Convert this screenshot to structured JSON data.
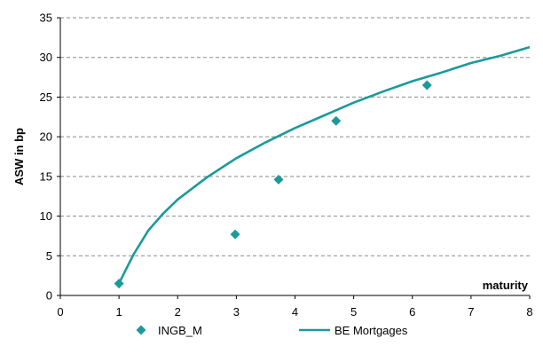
{
  "chart_data": {
    "type": "scatter",
    "title": "",
    "xlabel": "maturity",
    "ylabel": "ASW in bp",
    "xlim": [
      0,
      8
    ],
    "ylim": [
      0,
      35
    ],
    "x_ticks": [
      "0",
      "1",
      "2",
      "3",
      "4",
      "5",
      "6",
      "7",
      "8"
    ],
    "y_ticks": [
      "0",
      "5",
      "10",
      "15",
      "20",
      "25",
      "30",
      "35"
    ],
    "grid": "horizontal dashed",
    "legend_position": "bottom",
    "series": [
      {
        "name": "INGB_M",
        "kind": "scatter",
        "marker": "diamond",
        "color": "#1b9a9a",
        "x": [
          1.0,
          2.98,
          3.72,
          4.7,
          6.25
        ],
        "y": [
          1.5,
          7.7,
          14.6,
          22.0,
          26.5
        ]
      },
      {
        "name": "BE Mortgages",
        "kind": "line",
        "color": "#1b9a9a",
        "x": [
          1.0,
          1.1,
          1.25,
          1.5,
          1.75,
          2.0,
          2.5,
          3.0,
          3.5,
          4.0,
          4.5,
          5.0,
          5.5,
          6.0,
          6.5,
          7.0,
          7.5,
          8.0
        ],
        "y": [
          1.5,
          3.0,
          5.2,
          8.2,
          10.3,
          12.1,
          14.9,
          17.3,
          19.3,
          21.1,
          22.7,
          24.3,
          25.7,
          27.0,
          28.1,
          29.3,
          30.2,
          31.3
        ]
      }
    ]
  }
}
